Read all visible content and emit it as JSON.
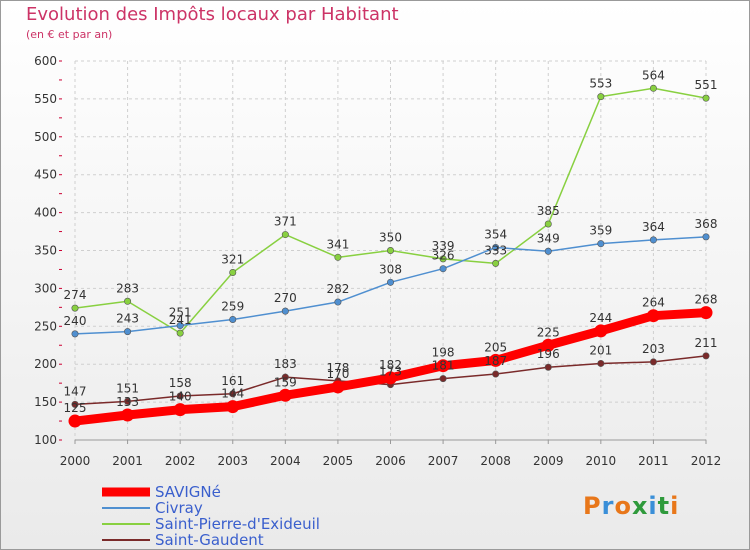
{
  "title": "Evolution des Impôts locaux par Habitant",
  "subtitle": "(en € et par an)",
  "logo": {
    "text": "Proxiti",
    "colors": [
      "#e8771a",
      "#3a8fd8",
      "#e8771a",
      "#2f9a3c",
      "#3a8fd8",
      "#2f9a3c",
      "#e8771a"
    ]
  },
  "chart_data": {
    "type": "line",
    "title": "Evolution des Impôts locaux par Habitant",
    "subtitle": "(en € et par an)",
    "x": [
      2000,
      2001,
      2002,
      2003,
      2004,
      2005,
      2006,
      2007,
      2008,
      2009,
      2010,
      2011,
      2012
    ],
    "ylim": [
      100,
      600
    ],
    "yticks": [
      100,
      150,
      200,
      250,
      300,
      350,
      400,
      450,
      500,
      550,
      600
    ],
    "grid": true,
    "legend_position": "bottom-left",
    "series": [
      {
        "name": "SAVIGNé",
        "color": "#ff0000",
        "values": [
          125,
          133,
          140,
          144,
          159,
          170,
          182,
          198,
          205,
          225,
          244,
          264,
          268
        ]
      },
      {
        "name": "Civray",
        "color": "#4f8fd0",
        "values": [
          240,
          243,
          251,
          259,
          270,
          282,
          308,
          326,
          354,
          349,
          359,
          364,
          368
        ]
      },
      {
        "name": "Saint-Pierre-d'Exideuil",
        "color": "#88d040",
        "values": [
          274,
          283,
          241,
          321,
          371,
          341,
          350,
          339,
          333,
          385,
          553,
          564,
          551
        ]
      },
      {
        "name": "Saint-Gaudent",
        "color": "#7a2a2a",
        "values": [
          147,
          151,
          158,
          161,
          183,
          178,
          173,
          181,
          187,
          196,
          201,
          203,
          211
        ]
      }
    ]
  }
}
